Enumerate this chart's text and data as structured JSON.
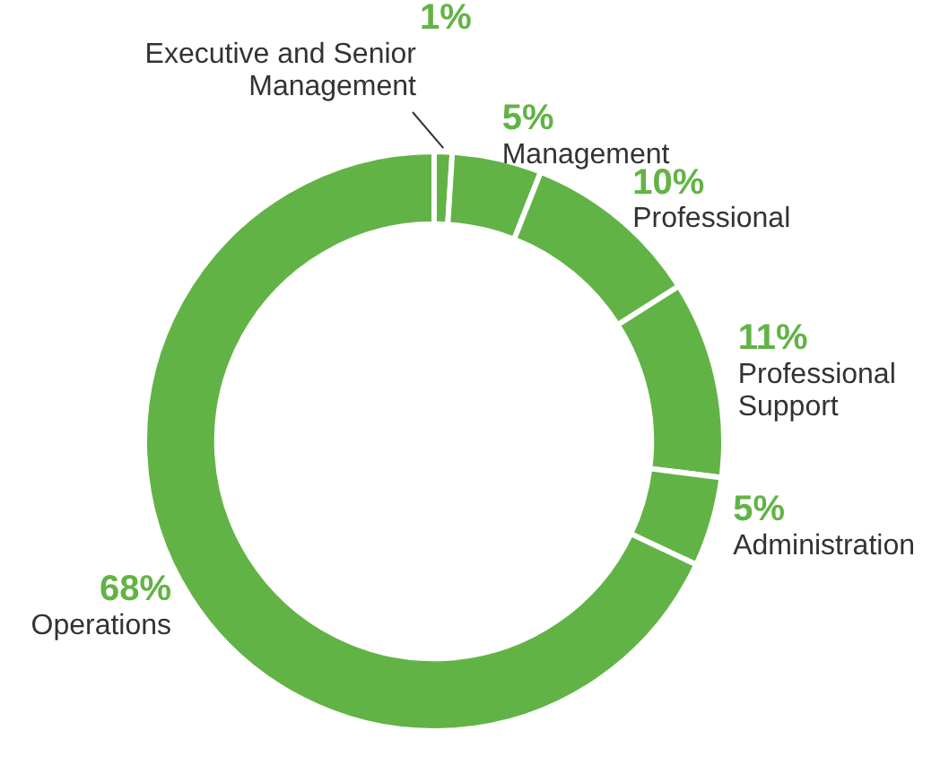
{
  "chart_data": {
    "type": "donut",
    "categories": [
      "Executive and Senior Management",
      "Management",
      "Professional",
      "Professional Support",
      "Administration",
      "Operations"
    ],
    "values": [
      1,
      5,
      10,
      11,
      5,
      68
    ],
    "value_labels": [
      "1%",
      "5%",
      "10%",
      "11%",
      "5%",
      "68%"
    ],
    "colors": [
      "#62b346",
      "#62b346",
      "#62b346",
      "#62b346",
      "#62b346",
      "#62b346"
    ],
    "legend": false
  }
}
